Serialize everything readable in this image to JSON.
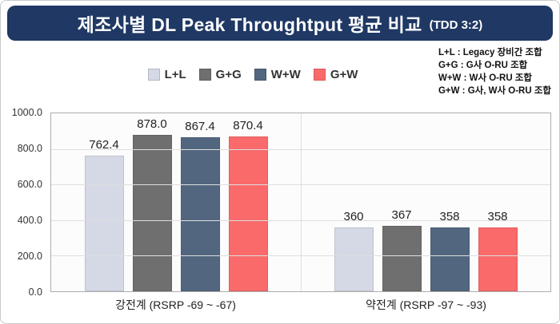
{
  "title": {
    "main": "제조사별 DL Peak Throughtput 평균 비교",
    "suffix": "(TDD 3:2)"
  },
  "legend_notes": [
    "L+L : Legacy 장비간 조합",
    "G+G : G사 O-RU 조합",
    "W+W : W사 O-RU 조합",
    "G+W : G사, W사 O-RU 조합"
  ],
  "colors": {
    "banner": "#1f3864",
    "grid": "#dedede"
  },
  "chart_data": {
    "type": "bar",
    "title": "제조사별 DL Peak Throughtput 평균 비교 (TDD 3:2)",
    "categories": [
      "강전계 (RSRP -69 ~ -67)",
      "약전계 (RSRP -97 ~ -93)"
    ],
    "series": [
      {
        "name": "L+L",
        "color": "#d5d9e6",
        "values": [
          762.4,
          360
        ]
      },
      {
        "name": "G+G",
        "color": "#6f6f6f",
        "values": [
          878.0,
          367
        ]
      },
      {
        "name": "W+W",
        "color": "#52677f",
        "values": [
          867.4,
          358
        ]
      },
      {
        "name": "G+W",
        "color": "#fa6a6a",
        "values": [
          870.4,
          358
        ]
      }
    ],
    "value_labels": [
      [
        "762.4",
        "878.0",
        "867.4",
        "870.4"
      ],
      [
        "360",
        "367",
        "358",
        "358"
      ]
    ],
    "xlabel": "",
    "ylabel": "",
    "ylim": [
      0,
      1000
    ],
    "ytick_step": 200,
    "yticks": [
      "1000.0",
      "800.0",
      "600.0",
      "400.0",
      "200.0",
      "0.0"
    ],
    "grid": true,
    "legend_position": "top"
  }
}
